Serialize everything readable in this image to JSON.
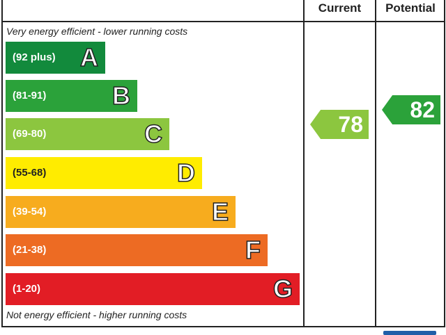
{
  "chart_data": {
    "type": "bar",
    "header": {
      "current": "Current",
      "potential": "Potential"
    },
    "top_note": "Very energy efficient - lower running costs",
    "bottom_note": "Not energy efficient - higher running costs",
    "bands": [
      {
        "letter": "A",
        "range": "(92 plus)",
        "color": "#128a3c"
      },
      {
        "letter": "B",
        "range": "(81-91)",
        "color": "#2ba23a"
      },
      {
        "letter": "C",
        "range": "(69-80)",
        "color": "#8cc63f"
      },
      {
        "letter": "D",
        "range": "(55-68)",
        "color": "#ffec00"
      },
      {
        "letter": "E",
        "range": "(39-54)",
        "color": "#f7ac1e"
      },
      {
        "letter": "F",
        "range": "(21-38)",
        "color": "#ed6b23"
      },
      {
        "letter": "G",
        "range": "(1-20)",
        "color": "#e21d25"
      }
    ],
    "current": {
      "value": "78",
      "band": "C",
      "color": "#8cc63f"
    },
    "potential": {
      "value": "82",
      "band": "B",
      "color": "#2ba23a"
    }
  }
}
